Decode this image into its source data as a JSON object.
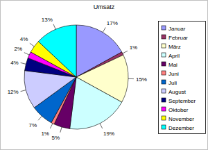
{
  "chart_data": {
    "type": "pie",
    "title": "Umsatz",
    "categories": [
      "Januar",
      "Februar",
      "März",
      "April",
      "Mai",
      "Juni",
      "Juli",
      "August",
      "September",
      "Oktober",
      "November",
      "Dezember"
    ],
    "values": [
      17,
      1,
      15,
      19,
      5,
      1,
      7,
      12,
      4,
      2,
      4,
      13
    ],
    "value_labels": [
      "17%",
      "1%",
      "15%",
      "19%",
      "5%",
      "1%",
      "7%",
      "12%",
      "4%",
      "2%",
      "4%",
      "13%"
    ],
    "colors": [
      "#9999ff",
      "#993366",
      "#ffffcc",
      "#ccffff",
      "#660066",
      "#ff8080",
      "#0066cc",
      "#ccccff",
      "#000080",
      "#ff00ff",
      "#ffff00",
      "#00ffff"
    ],
    "data_labels": true,
    "legend": "right"
  }
}
